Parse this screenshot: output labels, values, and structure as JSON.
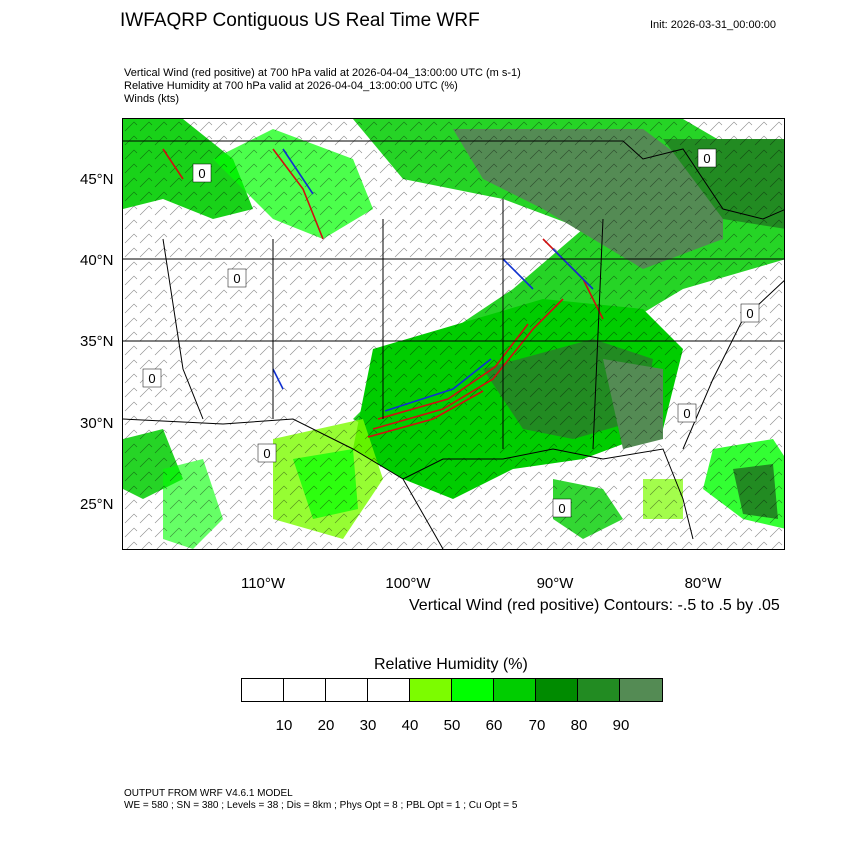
{
  "header": {
    "title": "IWFAQRP Contiguous US Real Time WRF",
    "init": "Init: 2026-03-31_00:00:00"
  },
  "subtitles": {
    "line1": "Vertical Wind (red positive) at 700 hPa valid at 2026-04-04_13:00:00 UTC   (m s-1)",
    "line2": "Relative Humidity at 700 hPa valid at 2026-04-04_13:00:00 UTC   (%)",
    "line3": "Winds   (kts)"
  },
  "map": {
    "lat_labels": [
      "45°N",
      "40°N",
      "35°N",
      "30°N",
      "25°N"
    ],
    "lon_labels": [
      "110°W",
      "100°W",
      "90°W",
      "80°W"
    ],
    "contour_note": "Vertical Wind (red positive) Contours: -.5 to .5 by .05",
    "contour_zero_label": "0"
  },
  "legend": {
    "title": "Relative Humidity  (%)",
    "ticks": [
      "10",
      "20",
      "30",
      "40",
      "50",
      "60",
      "70",
      "80",
      "90"
    ],
    "colors": [
      "#ffffff",
      "#ffffff",
      "#ffffff",
      "#ffffff",
      "#7cfc00",
      "#00ff00",
      "#00cd00",
      "#008b00",
      "#228b22",
      "#548b54"
    ]
  },
  "colors": {
    "positive_vertical_wind": "#d01010",
    "negative_vertical_wind": "#1030d0",
    "barb": "#000000"
  },
  "footer": {
    "line1": "OUTPUT FROM WRF V4.6.1 MODEL",
    "line2": "WE = 580 ; SN = 380 ; Levels = 38 ; Dis = 8km ; Phys Opt = 8 ; PBL Opt = 1 ; Cu Opt = 5"
  }
}
